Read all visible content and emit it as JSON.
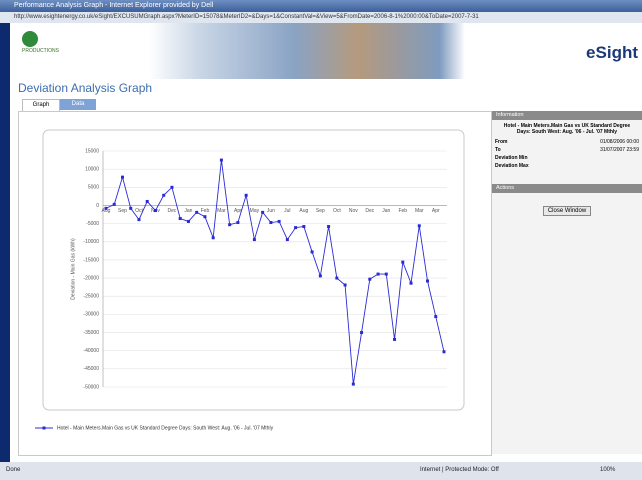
{
  "window": {
    "title": "Performance Analysis Graph - Internet Explorer provided by Dell",
    "address": "http://www.esightenergy.co.uk/eSight/EXCUSUMGraph.aspx?MeterID=15078&MeterID2=&Days=1&ConstantVal=&View=5&FromDate=2006-8-1%2000:00&ToDate=2007-7-31"
  },
  "header": {
    "brand": "eSight",
    "logo_text": "PRODUCTIONS",
    "title": "Deviation Analysis Graph"
  },
  "tabs": [
    "Graph",
    "Data"
  ],
  "chart_data": {
    "type": "line",
    "y_label": "Deviation - Main Gas (kWh)",
    "categories": [
      "Aug",
      null,
      "Sep",
      null,
      "Oct",
      null,
      "Nov",
      null,
      "Dec",
      null,
      "Jan",
      null,
      "Feb",
      null,
      "Mar",
      null,
      "Apr",
      null,
      "May",
      null,
      "Jun",
      null,
      "Jul",
      null,
      "Aug",
      null,
      "Sep",
      null,
      "Oct",
      null,
      "Nov",
      null,
      "Dec",
      null,
      "Jan",
      null,
      "Feb",
      null,
      "Mar",
      null,
      "Apr",
      null
    ],
    "series": [
      {
        "name": "Hotel - Main Meters.Main Gas vs UK Standard Degree Days: South West: Aug. '06 - Jul. '07 Mthly",
        "color": "#2b2bd6",
        "values": [
          -800,
          300,
          7800,
          -800,
          -3900,
          1100,
          -1400,
          2800,
          5000,
          -3600,
          -4400,
          -1900,
          -3100,
          -8900,
          12500,
          -5300,
          -4700,
          2800,
          -9400,
          -1900,
          -4700,
          -4400,
          -9400,
          -6100,
          -5800,
          -12800,
          -19400,
          -5800,
          -20000,
          -21900,
          -49200,
          -35000,
          -20300,
          -18900,
          -18900,
          -36900,
          -15600,
          -21400,
          -5600,
          -20800,
          -30600,
          -40300
        ]
      }
    ],
    "ylim": [
      -50000,
      15000
    ],
    "yticks": [
      15000,
      10000,
      5000,
      0,
      -5000,
      -10000,
      -15000,
      -20000,
      -25000,
      -30000,
      -35000,
      -40000,
      -45000,
      -50000
    ],
    "grid": true
  },
  "info_panel": {
    "title": "Information",
    "description": "Hotel - Main Meters.Main Gas vs UK Standard Degree Days: South West: Aug. '06 - Jul. '07 Mthly",
    "rows": [
      [
        "From",
        "01/08/2006 00:00"
      ],
      [
        "To",
        "31/07/2007 23:59"
      ],
      [
        "Deviation Min",
        ""
      ],
      [
        "Deviation Max",
        ""
      ]
    ]
  },
  "actions_panel": {
    "title": "Actions",
    "button": "Close Window"
  },
  "status_bar": {
    "left": "Done",
    "zone": "Internet | Protected Mode: Off",
    "zoom": "100%"
  }
}
